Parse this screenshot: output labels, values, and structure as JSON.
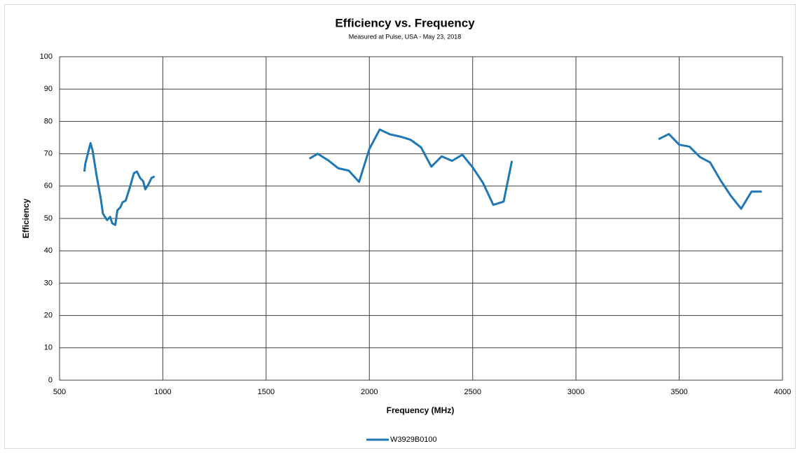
{
  "chart_data": {
    "type": "line",
    "title": "Efficiency vs. Frequency",
    "subtitle": "Measured at Pulse, USA - May 23, 2018",
    "x_label": "Frequency (MHz)",
    "y_label": "Efficiency",
    "x": [
      620,
      625,
      650,
      660,
      680,
      700,
      710,
      730,
      745,
      755,
      770,
      780,
      795,
      805,
      820,
      840,
      860,
      875,
      890,
      905,
      915,
      930,
      945,
      960,
      null,
      1710,
      1750,
      1800,
      1850,
      1900,
      1950,
      2000,
      2050,
      2100,
      2150,
      2200,
      2250,
      2300,
      2350,
      2400,
      2450,
      2500,
      2550,
      2600,
      2650,
      2690,
      null,
      3400,
      3450,
      3500,
      3550,
      3600,
      3650,
      3700,
      3750,
      3800,
      3850,
      3900
    ],
    "series": [
      {
        "name": "W3929B0100",
        "color": "#1f77b4",
        "values": [
          64.5,
          67,
          73.3,
          71,
          63,
          56,
          51.5,
          49.5,
          50.5,
          48.5,
          48,
          52.5,
          53.5,
          55,
          55.5,
          59.5,
          64,
          64.5,
          62.5,
          61.5,
          59,
          60.5,
          62.5,
          63,
          null,
          68.5,
          70,
          68,
          65.5,
          64.8,
          61.3,
          71.5,
          77.5,
          76,
          75.3,
          74.3,
          72,
          66,
          69.2,
          67.8,
          69.7,
          65.8,
          61,
          54.2,
          55.2,
          67.8,
          null,
          74.5,
          76.1,
          72.8,
          72.2,
          69,
          67.3,
          61.8,
          57,
          53,
          58.3,
          58.3
        ]
      }
    ],
    "xlim": [
      500,
      4000
    ],
    "xticks": [
      500,
      1000,
      1500,
      2000,
      2500,
      3000,
      3500,
      4000
    ],
    "ylim": [
      0,
      100
    ],
    "yticks": [
      0,
      10,
      20,
      30,
      40,
      50,
      60,
      70,
      80,
      90,
      100
    ],
    "grid": true,
    "legend": "bottom"
  }
}
